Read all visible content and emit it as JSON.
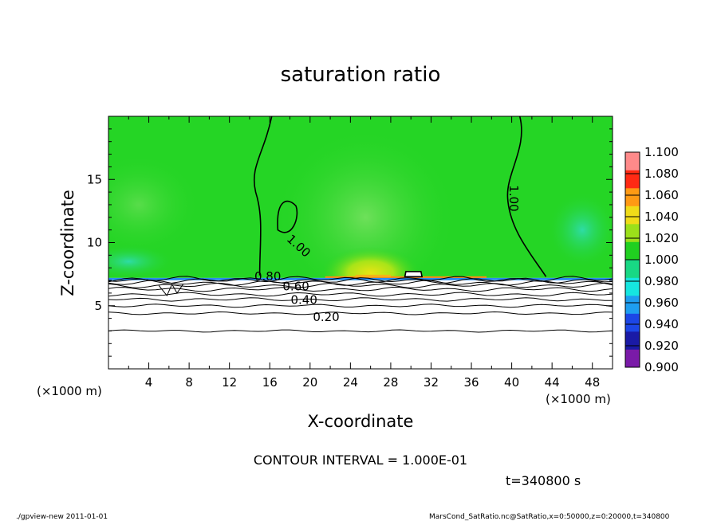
{
  "chart_data": {
    "type": "heatmap",
    "title": "saturation ratio",
    "xlabel": "X-coordinate",
    "ylabel": "Z-coordinate",
    "x_unit": "(×1000 m)",
    "y_unit": "(×1000 m)",
    "xlim": [
      0,
      50
    ],
    "ylim": [
      0,
      20
    ],
    "x_ticks": [
      4,
      8,
      12,
      16,
      20,
      24,
      28,
      32,
      36,
      40,
      44,
      48
    ],
    "y_ticks": [
      5,
      10,
      15
    ],
    "colorbar": {
      "levels": [
        0.9,
        0.92,
        0.94,
        0.96,
        0.98,
        1.0,
        1.02,
        1.04,
        1.06,
        1.08,
        1.1
      ],
      "labels": [
        "0.900",
        "0.920",
        "0.940",
        "0.960",
        "0.980",
        "1.000",
        "1.020",
        "1.040",
        "1.060",
        "1.080",
        "1.100"
      ],
      "colors": [
        "#7a1aa8",
        "#1a1aa6",
        "#1c46e6",
        "#1e9ef0",
        "#16e6e0",
        "#18d884",
        "#20d020",
        "#9ce01a",
        "#f0dc18",
        "#ff9a14",
        "#ff2a14",
        "#ff8a8a"
      ]
    },
    "shading": {
      "background_green": "#25d525",
      "light_green": "#5ae05a",
      "teal": "#2ad89a",
      "near_surface_yellow": "#d4e816",
      "orange": "#ff8c10",
      "boundary_blue": "#2a8cf0",
      "boundary_z": 7.2
    },
    "contours": [
      {
        "label": "0.20",
        "z": 4.4
      },
      {
        "label": "0.40",
        "z": 5.5
      },
      {
        "label": "0.60",
        "z": 6.3
      },
      {
        "label": "0.80",
        "z": 6.8
      },
      {
        "label": "1.00",
        "z": null
      }
    ],
    "contour_interval": "CONTOUR INTERVAL = 1.000E-01",
    "time_label": "t=340800 s"
  },
  "footer": {
    "left": "./gpview-new   2011-01-01",
    "right": "MarsCond_SatRatio.nc@SatRatio,x=0:50000,z=0:20000,t=340800"
  }
}
